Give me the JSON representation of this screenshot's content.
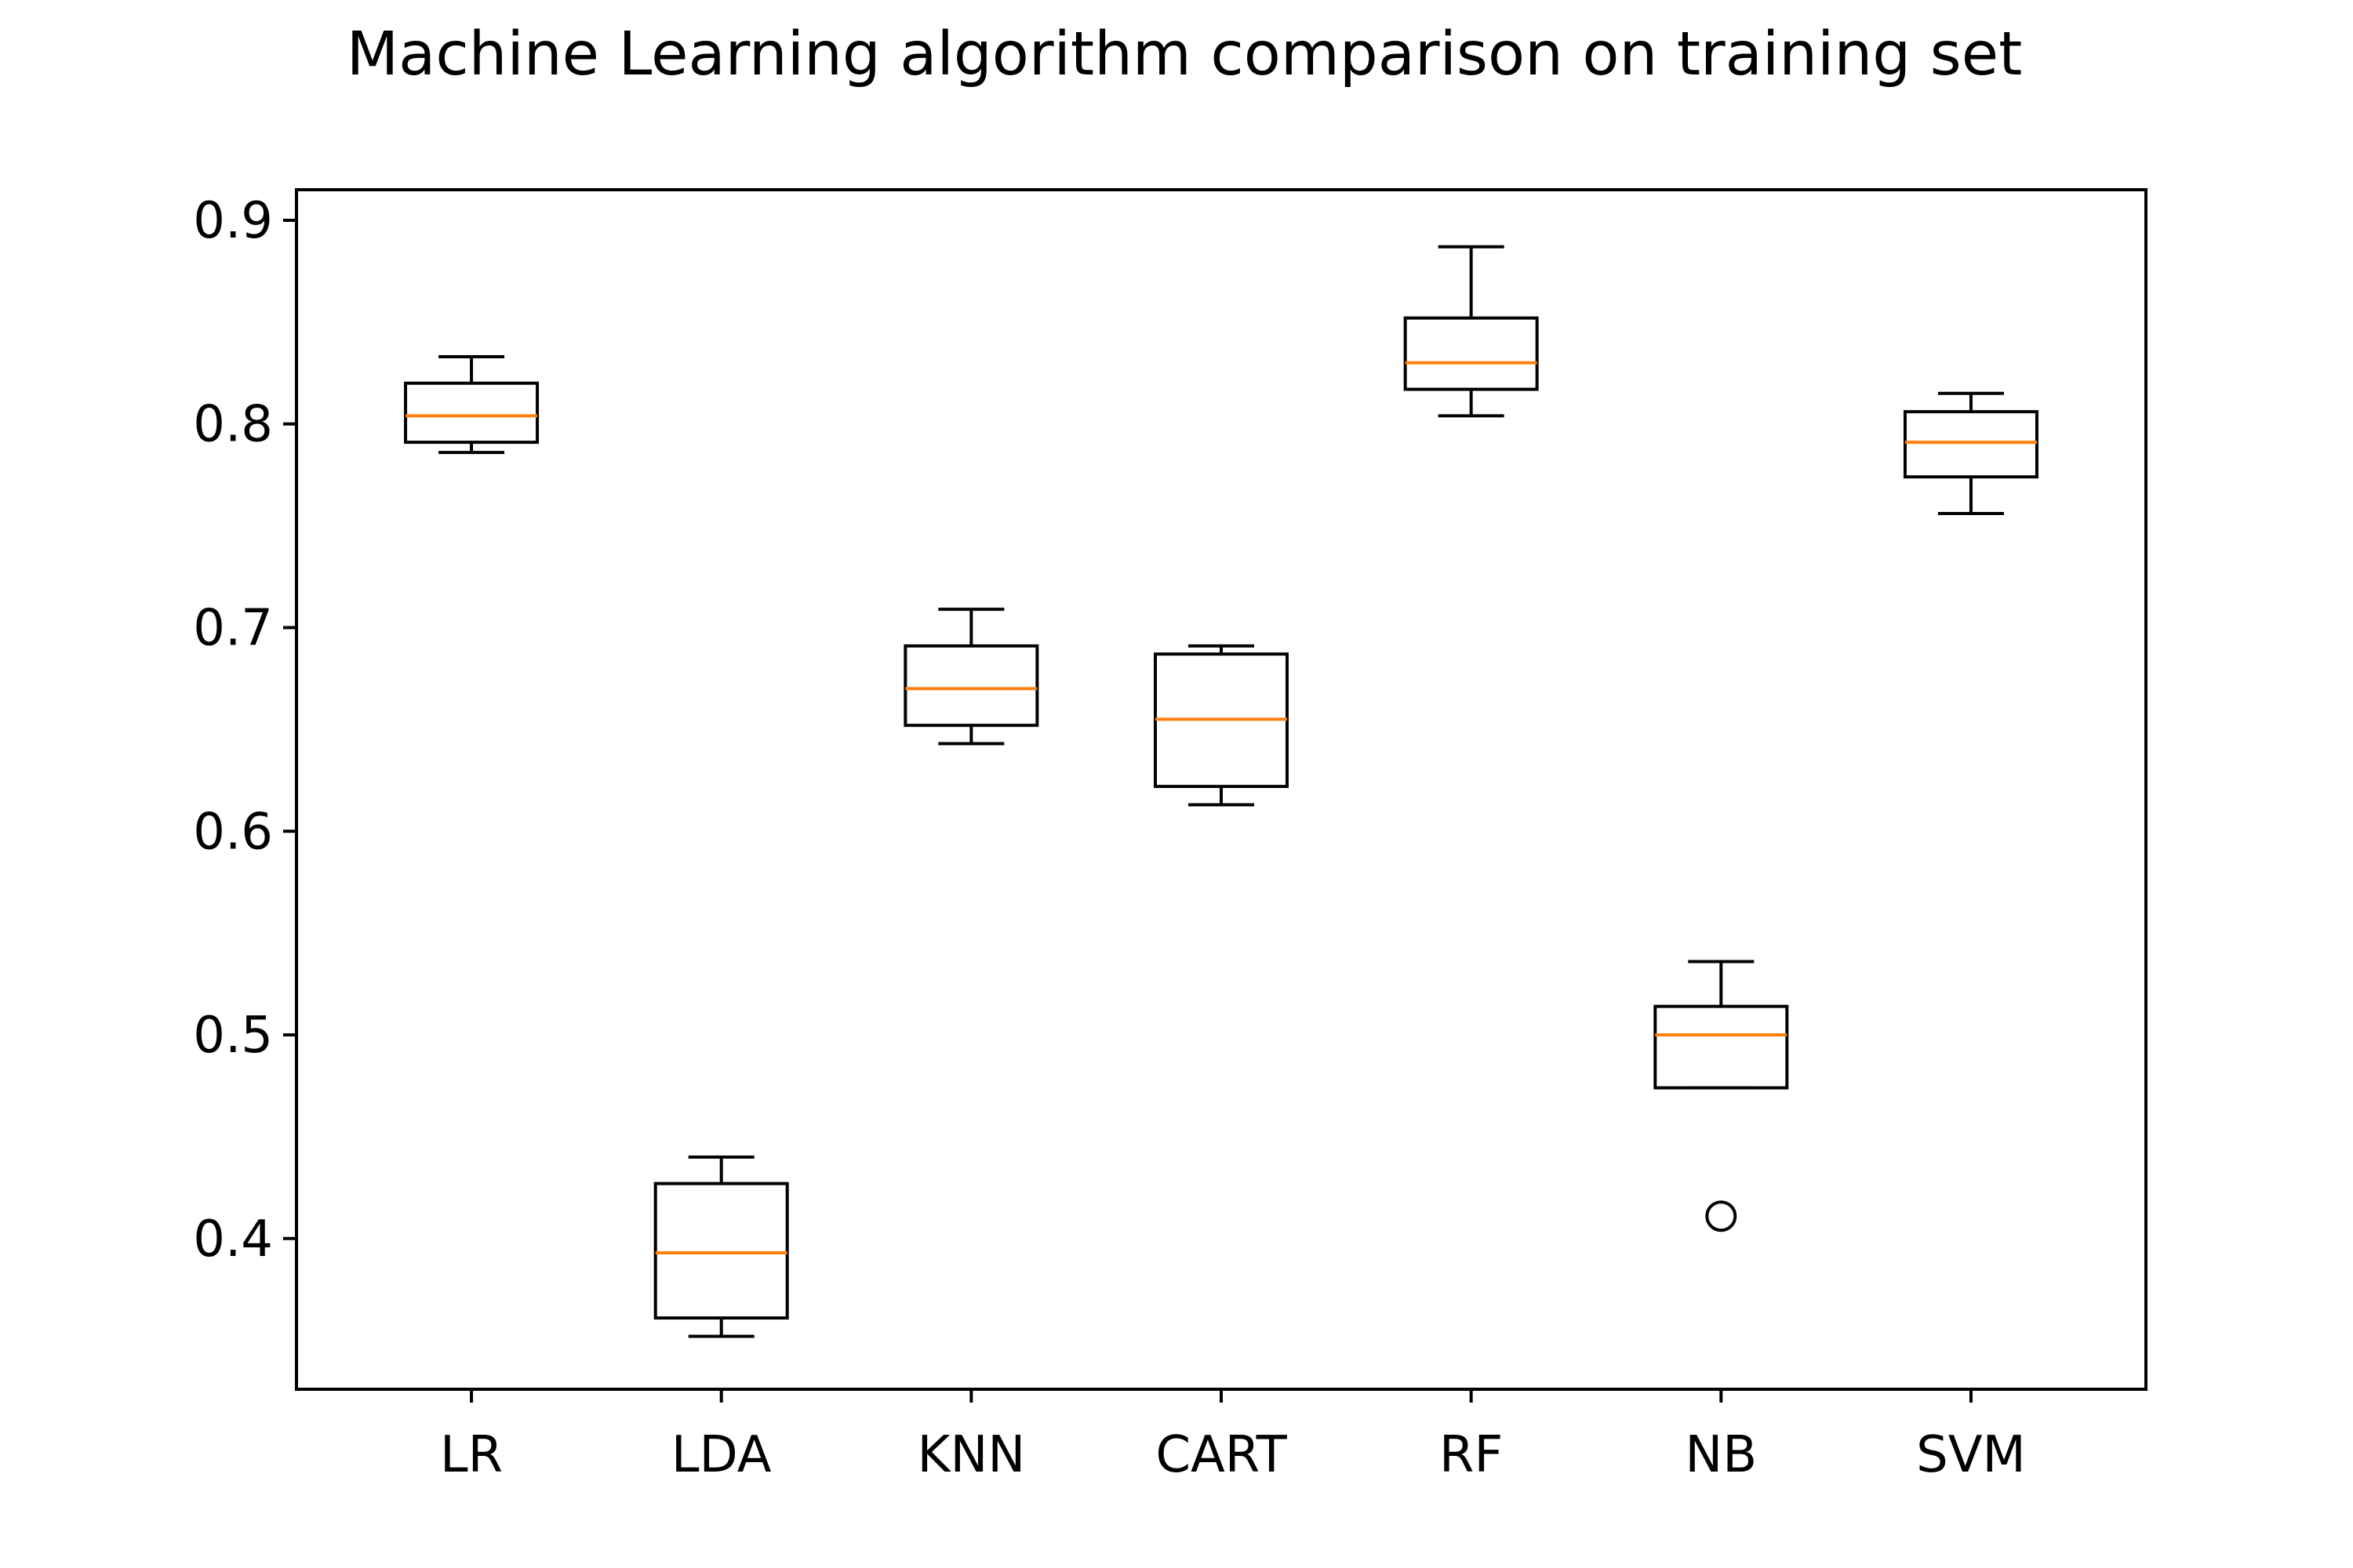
{
  "chart_data": {
    "type": "box",
    "title": "Machine Learning algorithm comparison on training set",
    "xlabel": "",
    "ylabel": "",
    "ylim": [
      0.326,
      0.915
    ],
    "yticks": [
      {
        "value": 0.4,
        "label": "0.4"
      },
      {
        "value": 0.5,
        "label": "0.5"
      },
      {
        "value": 0.6,
        "label": "0.6"
      },
      {
        "value": 0.7,
        "label": "0.7"
      },
      {
        "value": 0.8,
        "label": "0.8"
      },
      {
        "value": 0.9,
        "label": "0.9"
      }
    ],
    "grid": false,
    "median_color": "#ff7f0e",
    "box_color": "#000000",
    "categories": [
      "LR",
      "LDA",
      "KNN",
      "CART",
      "RF",
      "NB",
      "SVM"
    ],
    "boxes": [
      {
        "name": "LR",
        "whisker_low": 0.786,
        "q1": 0.791,
        "median": 0.804,
        "q3": 0.82,
        "whisker_high": 0.833,
        "fliers": []
      },
      {
        "name": "LDA",
        "whisker_low": 0.352,
        "q1": 0.361,
        "median": 0.393,
        "q3": 0.427,
        "whisker_high": 0.44,
        "fliers": []
      },
      {
        "name": "KNN",
        "whisker_low": 0.643,
        "q1": 0.652,
        "median": 0.67,
        "q3": 0.691,
        "whisker_high": 0.709,
        "fliers": []
      },
      {
        "name": "CART",
        "whisker_low": 0.613,
        "q1": 0.622,
        "median": 0.655,
        "q3": 0.687,
        "whisker_high": 0.691,
        "fliers": []
      },
      {
        "name": "RF",
        "whisker_low": 0.804,
        "q1": 0.817,
        "median": 0.83,
        "q3": 0.852,
        "whisker_high": 0.887,
        "fliers": []
      },
      {
        "name": "NB",
        "whisker_low": 0.474,
        "q1": 0.474,
        "median": 0.5,
        "q3": 0.514,
        "whisker_high": 0.536,
        "fliers": [
          0.411
        ]
      },
      {
        "name": "SVM",
        "whisker_low": 0.756,
        "q1": 0.774,
        "median": 0.791,
        "q3": 0.806,
        "whisker_high": 0.815,
        "fliers": []
      }
    ]
  }
}
